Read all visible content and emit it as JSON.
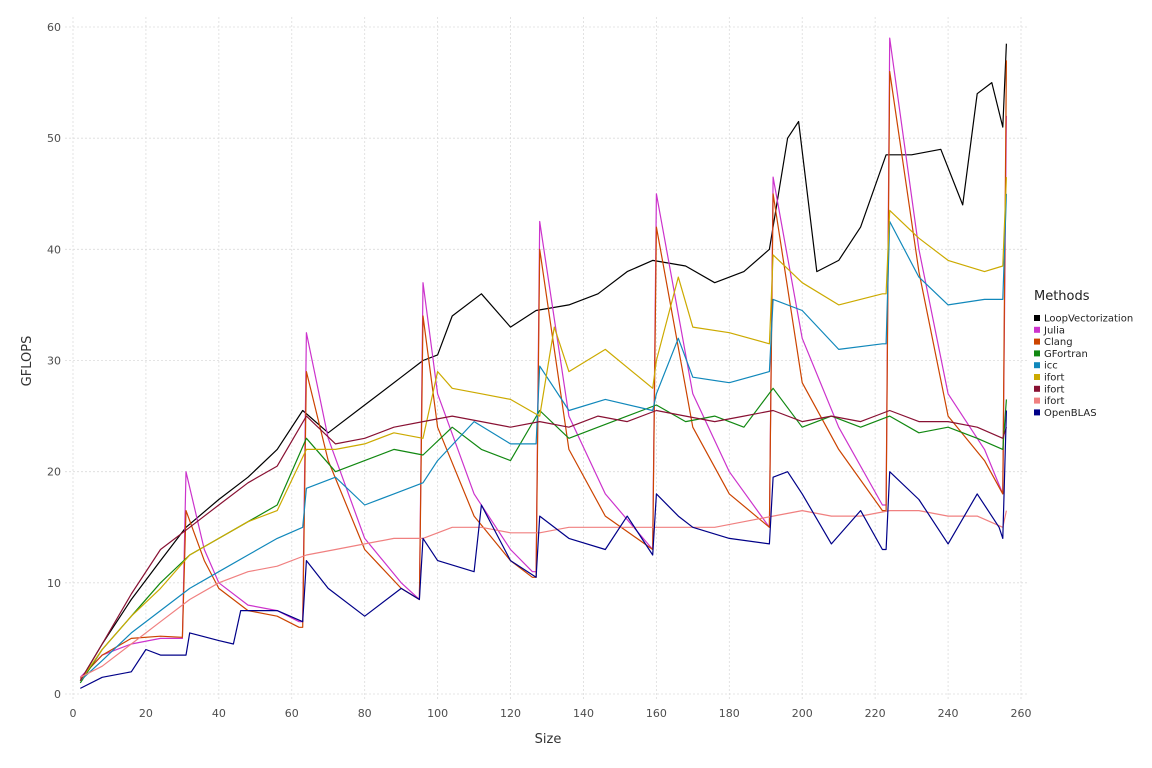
{
  "chart_data": {
    "type": "line",
    "title": "",
    "xlabel": "Size",
    "ylabel": "GFLOPS",
    "xlim": [
      0,
      260
    ],
    "ylim": [
      0,
      60
    ],
    "xticks": [
      0,
      20,
      40,
      60,
      80,
      100,
      120,
      140,
      160,
      180,
      200,
      220,
      240,
      260
    ],
    "yticks": [
      0,
      10,
      20,
      30,
      40,
      50,
      60
    ],
    "grid": true,
    "legend": {
      "title": "Methods",
      "position": "right"
    },
    "series": [
      {
        "name": "LoopVectorization",
        "color": "#000000",
        "x": [
          2,
          8,
          16,
          24,
          31,
          40,
          48,
          56,
          63,
          70,
          80,
          90,
          96,
          100,
          104,
          112,
          120,
          127,
          136,
          144,
          152,
          159,
          168,
          176,
          184,
          191,
          196,
          199,
          204,
          210,
          216,
          223,
          230,
          238,
          244,
          248,
          252,
          255,
          256
        ],
        "y": [
          1.2,
          4.5,
          8.5,
          12.0,
          15.0,
          17.5,
          19.5,
          22.0,
          25.5,
          23.5,
          26.0,
          28.5,
          30.0,
          30.5,
          34.0,
          36.0,
          33.0,
          34.5,
          35.0,
          36.0,
          38.0,
          39.0,
          38.5,
          37.0,
          38.0,
          40.0,
          50.0,
          51.5,
          38.0,
          39.0,
          42.0,
          48.5,
          48.5,
          49.0,
          44.0,
          54.0,
          55.0,
          51.0,
          58.5
        ]
      },
      {
        "name": "Julia",
        "color": "#cc33cc",
        "x": [
          2,
          8,
          16,
          24,
          30,
          31,
          36,
          40,
          48,
          56,
          62,
          63,
          64,
          70,
          80,
          90,
          95,
          96,
          100,
          110,
          120,
          126,
          127,
          128,
          136,
          146,
          159,
          160,
          170,
          180,
          191,
          192,
          200,
          210,
          222,
          223,
          224,
          232,
          240,
          250,
          255,
          256
        ],
        "y": [
          1.5,
          3.5,
          4.5,
          5.0,
          5.0,
          20.0,
          13.0,
          10.0,
          8.0,
          7.5,
          6.5,
          6.5,
          32.5,
          23.0,
          14.0,
          10.0,
          8.5,
          37.0,
          27.0,
          18.0,
          13.0,
          11.0,
          11.0,
          42.5,
          25.0,
          18.0,
          13.0,
          45.0,
          27.0,
          20.0,
          15.0,
          46.5,
          32.0,
          24.0,
          17.0,
          17.0,
          59.0,
          40.0,
          27.0,
          22.0,
          18.0,
          52.0
        ]
      },
      {
        "name": "Clang",
        "color": "#cc4400",
        "x": [
          2,
          8,
          16,
          24,
          30,
          31,
          36,
          40,
          48,
          56,
          62,
          63,
          64,
          70,
          80,
          90,
          95,
          96,
          100,
          110,
          120,
          126,
          127,
          128,
          136,
          146,
          159,
          160,
          170,
          180,
          191,
          192,
          200,
          210,
          222,
          223,
          224,
          232,
          240,
          250,
          255,
          256
        ],
        "y": [
          1.4,
          3.5,
          5.0,
          5.2,
          5.1,
          16.5,
          12.0,
          9.5,
          7.5,
          7.0,
          6.0,
          6.0,
          29.0,
          21.0,
          13.0,
          9.5,
          8.5,
          34.0,
          24.0,
          16.0,
          12.0,
          10.5,
          10.5,
          40.0,
          22.0,
          16.0,
          13.0,
          42.0,
          24.0,
          18.0,
          15.0,
          45.0,
          28.0,
          22.0,
          16.5,
          16.5,
          56.0,
          38.0,
          25.0,
          21.0,
          18.0,
          57.0
        ]
      },
      {
        "name": "GFortran",
        "color": "#118811",
        "x": [
          2,
          8,
          16,
          24,
          32,
          40,
          48,
          56,
          64,
          72,
          80,
          88,
          96,
          104,
          112,
          120,
          128,
          136,
          144,
          152,
          160,
          168,
          176,
          184,
          192,
          200,
          208,
          216,
          224,
          232,
          240,
          248,
          255,
          256
        ],
        "y": [
          1.0,
          4.0,
          7.0,
          10.0,
          12.5,
          14.0,
          15.5,
          17.0,
          23.0,
          20.0,
          21.0,
          22.0,
          21.5,
          24.0,
          22.0,
          21.0,
          25.5,
          23.0,
          24.0,
          25.0,
          26.0,
          24.5,
          25.0,
          24.0,
          27.5,
          24.0,
          25.0,
          24.0,
          25.0,
          23.5,
          24.0,
          23.0,
          22.0,
          26.5
        ]
      },
      {
        "name": "icc",
        "color": "#1188bb",
        "x": [
          2,
          8,
          16,
          24,
          32,
          40,
          48,
          56,
          63,
          64,
          72,
          80,
          88,
          96,
          100,
          110,
          120,
          127,
          128,
          136,
          146,
          159,
          160,
          166,
          170,
          180,
          191,
          192,
          200,
          210,
          222,
          223,
          224,
          232,
          240,
          250,
          255,
          256
        ],
        "y": [
          1.2,
          3.0,
          5.5,
          7.5,
          9.5,
          11.0,
          12.5,
          14.0,
          15.0,
          18.5,
          19.5,
          17.0,
          18.0,
          19.0,
          21.0,
          24.5,
          22.5,
          22.5,
          29.5,
          25.5,
          26.5,
          25.5,
          27.0,
          32.0,
          28.5,
          28.0,
          29.0,
          35.5,
          34.5,
          31.0,
          31.5,
          31.5,
          42.5,
          37.5,
          35.0,
          35.5,
          35.5,
          45.0
        ]
      },
      {
        "name": "ifort",
        "color": "#ccaa00",
        "x": [
          2,
          8,
          16,
          24,
          32,
          40,
          48,
          56,
          64,
          72,
          80,
          88,
          96,
          100,
          104,
          112,
          120,
          128,
          132,
          136,
          146,
          159,
          160,
          166,
          170,
          180,
          191,
          192,
          200,
          210,
          222,
          223,
          224,
          232,
          240,
          250,
          255,
          256
        ],
        "y": [
          1.2,
          4.0,
          7.0,
          9.5,
          12.5,
          14.0,
          15.5,
          16.5,
          22.0,
          22.0,
          22.5,
          23.5,
          23.0,
          29.0,
          27.5,
          27.0,
          26.5,
          25.0,
          33.0,
          29.0,
          31.0,
          27.5,
          30.0,
          37.5,
          33.0,
          32.5,
          31.5,
          39.5,
          37.0,
          35.0,
          36.0,
          36.0,
          43.5,
          41.0,
          39.0,
          38.0,
          38.5,
          46.5
        ]
      },
      {
        "name": "ifort",
        "color": "#881133",
        "x": [
          2,
          8,
          16,
          24,
          32,
          40,
          48,
          56,
          64,
          72,
          80,
          88,
          96,
          104,
          112,
          120,
          128,
          136,
          144,
          152,
          160,
          168,
          176,
          184,
          192,
          200,
          208,
          216,
          224,
          232,
          240,
          248,
          255,
          256
        ],
        "y": [
          1.2,
          4.5,
          9.0,
          13.0,
          15.0,
          17.0,
          19.0,
          20.5,
          25.0,
          22.5,
          23.0,
          24.0,
          24.5,
          25.0,
          24.5,
          24.0,
          24.5,
          24.0,
          25.0,
          24.5,
          25.5,
          25.0,
          24.5,
          25.0,
          25.5,
          24.5,
          25.0,
          24.5,
          25.5,
          24.5,
          24.5,
          24.0,
          23.0,
          24.0
        ]
      },
      {
        "name": "ifort",
        "color": "#f08080",
        "x": [
          2,
          8,
          16,
          24,
          32,
          40,
          48,
          56,
          64,
          72,
          80,
          88,
          96,
          104,
          112,
          120,
          128,
          136,
          144,
          152,
          160,
          168,
          176,
          184,
          192,
          200,
          208,
          216,
          224,
          232,
          240,
          248,
          255,
          256
        ],
        "y": [
          1.5,
          2.5,
          4.5,
          6.5,
          8.5,
          10.0,
          11.0,
          11.5,
          12.5,
          13.0,
          13.5,
          14.0,
          14.0,
          15.0,
          15.0,
          14.5,
          14.5,
          15.0,
          15.0,
          15.0,
          15.0,
          15.0,
          15.0,
          15.5,
          16.0,
          16.5,
          16.0,
          16.0,
          16.5,
          16.5,
          16.0,
          16.0,
          15.0,
          16.5
        ]
      },
      {
        "name": "OpenBLAS",
        "color": "#000088",
        "x": [
          2,
          8,
          16,
          20,
          24,
          31,
          32,
          40,
          44,
          46,
          56,
          63,
          64,
          70,
          80,
          90,
          95,
          96,
          100,
          110,
          112,
          120,
          127,
          128,
          136,
          146,
          152,
          159,
          160,
          166,
          170,
          180,
          191,
          192,
          196,
          200,
          208,
          216,
          222,
          223,
          224,
          232,
          240,
          248,
          254,
          255,
          256
        ],
        "y": [
          0.5,
          1.5,
          2.0,
          4.0,
          3.5,
          3.5,
          5.5,
          4.8,
          4.5,
          7.5,
          7.5,
          6.5,
          12.0,
          9.5,
          7.0,
          9.5,
          8.5,
          14.0,
          12.0,
          11.0,
          17.0,
          12.0,
          10.5,
          16.0,
          14.0,
          13.0,
          16.0,
          12.5,
          18.0,
          16.0,
          15.0,
          14.0,
          13.5,
          19.5,
          20.0,
          18.0,
          13.5,
          16.5,
          13.0,
          13.0,
          20.0,
          17.5,
          13.5,
          18.0,
          15.0,
          14.0,
          25.5
        ]
      }
    ]
  }
}
